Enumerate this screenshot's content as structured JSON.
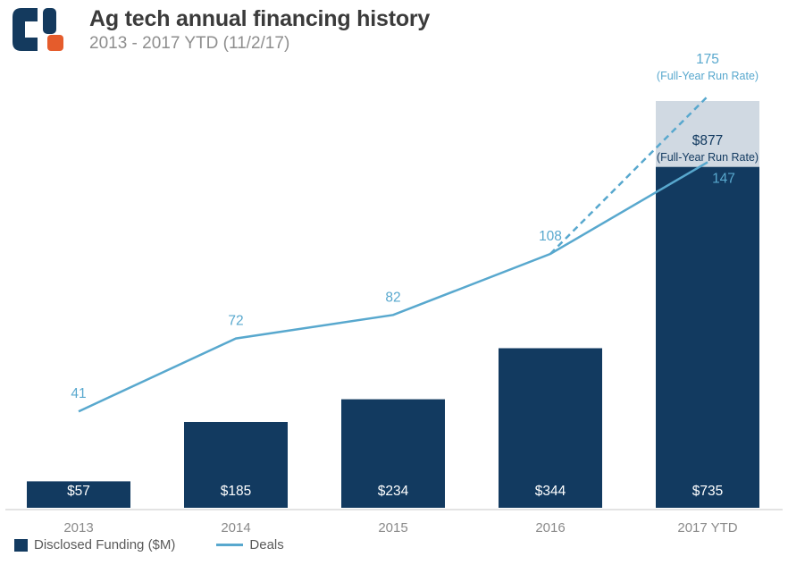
{
  "header": {
    "title": "Ag tech annual financing history",
    "subtitle": "2013 - 2017 YTD (11/2/17)",
    "logo": "cb-insights-logo"
  },
  "colors": {
    "bar": "#123A60",
    "run_rate_bar": "#D0D9E2",
    "line": "#58A8CE",
    "bar_label": "#FFFFFF",
    "axis_label": "#8A8A8A",
    "axis_line": "#DADADA",
    "title_text": "#3B3B3B",
    "subtitle_text": "#8E8E8E",
    "logo_navy": "#143A5E",
    "logo_orange": "#E55C2C"
  },
  "chart_data": {
    "type": "bar+line",
    "categories": [
      "2013",
      "2014",
      "2015",
      "2016",
      "2017 YTD"
    ],
    "series": [
      {
        "name": "Disclosed Funding ($M)",
        "type": "bar",
        "values": [
          57,
          185,
          234,
          344,
          735
        ],
        "labels": [
          "$57",
          "$185",
          "$234",
          "$344",
          "$735"
        ]
      },
      {
        "name": "Deals",
        "type": "line",
        "values": [
          41,
          72,
          82,
          108,
          147
        ],
        "labels": [
          "41",
          "72",
          "82",
          "108",
          "147"
        ]
      }
    ],
    "run_rate": {
      "funding_value": 877,
      "funding_label": "$877",
      "funding_note": "(Full-Year Run Rate)",
      "deals_value": 175,
      "deals_label": "175",
      "deals_note": "(Full-Year Run Rate)"
    },
    "funding_axis_range": [
      0,
      900
    ],
    "deals_axis_range": [
      0,
      190
    ],
    "grid": false,
    "legend_position": "bottom-left"
  },
  "legend": {
    "items": [
      {
        "label": "Disclosed Funding ($M)",
        "swatch": "bar-swatch"
      },
      {
        "label": "Deals",
        "swatch": "line-swatch"
      }
    ]
  }
}
